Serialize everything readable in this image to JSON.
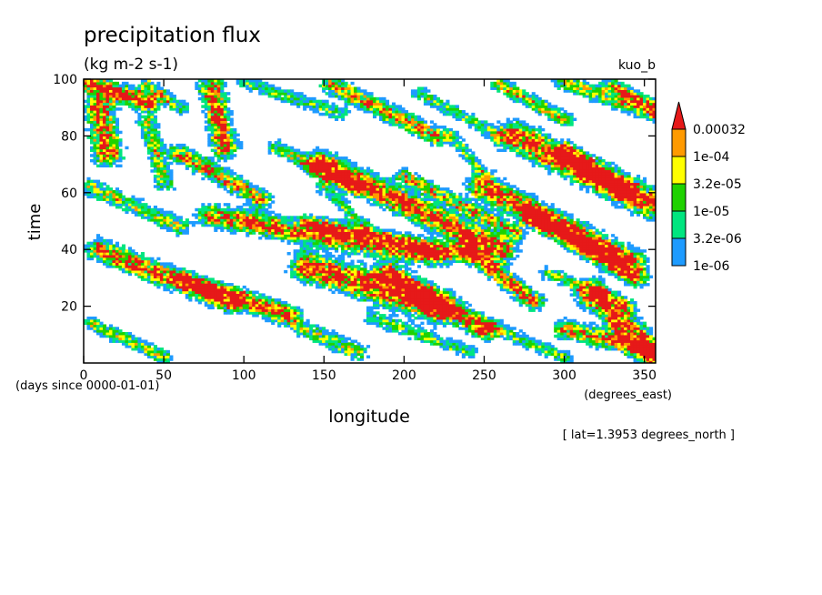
{
  "chart_data": {
    "type": "heatmap",
    "title": "precipitation flux",
    "units": "(kg m-2 s-1)",
    "run_label": "kuo_b",
    "xlabel": "longitude",
    "x_units": "(degrees_east)",
    "ylabel": "time",
    "y_units": "(days since 0000-01-01)",
    "footnote": "[ lat=1.3953 degrees_north ]",
    "xlim": [
      0,
      357
    ],
    "ylim": [
      0,
      100
    ],
    "x_ticks": [
      0,
      50,
      100,
      150,
      200,
      250,
      300,
      350
    ],
    "y_ticks": [
      20,
      40,
      60,
      80,
      100
    ],
    "grid": false,
    "legend_position": "right",
    "colorbar": {
      "levels": [
        "1e-06",
        "3.2e-06",
        "1e-05",
        "3.2e-05",
        "1e-04",
        "0.00032"
      ],
      "colors": [
        "#1e9bff",
        "#00e57f",
        "#1fd200",
        "#ffff00",
        "#ff9a00",
        "#e61919"
      ],
      "extend": "max"
    },
    "features": [
      {
        "x0": 2,
        "y0": 99,
        "x1": 40,
        "y1": 92,
        "w": 5,
        "i": 1.0
      },
      {
        "x0": 10,
        "y0": 90,
        "x1": 15,
        "y1": 74,
        "w": 7,
        "i": 0.9
      },
      {
        "x0": 40,
        "y0": 98,
        "x1": 60,
        "y1": 90,
        "w": 4,
        "i": 0.6
      },
      {
        "x0": 40,
        "y0": 85,
        "x1": 50,
        "y1": 64,
        "w": 5,
        "i": 0.6
      },
      {
        "x0": 80,
        "y0": 97,
        "x1": 88,
        "y1": 76,
        "w": 6,
        "i": 0.9
      },
      {
        "x0": 100,
        "y0": 99,
        "x1": 160,
        "y1": 88,
        "w": 4,
        "i": 0.5
      },
      {
        "x0": 155,
        "y0": 98,
        "x1": 220,
        "y1": 80,
        "w": 5,
        "i": 0.8
      },
      {
        "x0": 210,
        "y0": 95,
        "x1": 260,
        "y1": 80,
        "w": 4,
        "i": 0.5
      },
      {
        "x0": 260,
        "y0": 98,
        "x1": 300,
        "y1": 86,
        "w": 4,
        "i": 0.7
      },
      {
        "x0": 300,
        "y0": 99,
        "x1": 355,
        "y1": 88,
        "w": 5,
        "i": 0.6
      },
      {
        "x0": 270,
        "y0": 80,
        "x1": 355,
        "y1": 56,
        "w": 8,
        "i": 1.0
      },
      {
        "x0": 300,
        "y0": 74,
        "x1": 340,
        "y1": 60,
        "w": 5,
        "i": 0.9
      },
      {
        "x0": 60,
        "y0": 74,
        "x1": 110,
        "y1": 58,
        "w": 5,
        "i": 0.8
      },
      {
        "x0": 120,
        "y0": 76,
        "x1": 170,
        "y1": 62,
        "w": 4,
        "i": 0.6
      },
      {
        "x0": 150,
        "y0": 70,
        "x1": 260,
        "y1": 40,
        "w": 7,
        "i": 1.0
      },
      {
        "x0": 200,
        "y0": 66,
        "x1": 270,
        "y1": 46,
        "w": 4,
        "i": 0.7
      },
      {
        "x0": 250,
        "y0": 62,
        "x1": 340,
        "y1": 36,
        "w": 7,
        "i": 1.0
      },
      {
        "x0": 280,
        "y0": 52,
        "x1": 345,
        "y1": 30,
        "w": 5,
        "i": 0.8
      },
      {
        "x0": 5,
        "y0": 62,
        "x1": 60,
        "y1": 48,
        "w": 5,
        "i": 0.6
      },
      {
        "x0": 80,
        "y0": 52,
        "x1": 220,
        "y1": 38,
        "w": 6,
        "i": 0.9
      },
      {
        "x0": 140,
        "y0": 50,
        "x1": 240,
        "y1": 38,
        "w": 4,
        "i": 0.6
      },
      {
        "x0": 10,
        "y0": 40,
        "x1": 90,
        "y1": 22,
        "w": 6,
        "i": 0.9
      },
      {
        "x0": 60,
        "y0": 30,
        "x1": 130,
        "y1": 18,
        "w": 4,
        "i": 0.6
      },
      {
        "x0": 140,
        "y0": 34,
        "x1": 220,
        "y1": 20,
        "w": 8,
        "i": 1.0
      },
      {
        "x0": 190,
        "y0": 32,
        "x1": 250,
        "y1": 12,
        "w": 6,
        "i": 0.9
      },
      {
        "x0": 240,
        "y0": 40,
        "x1": 280,
        "y1": 22,
        "w": 5,
        "i": 0.9
      },
      {
        "x0": 290,
        "y0": 32,
        "x1": 340,
        "y1": 20,
        "w": 4,
        "i": 0.5
      },
      {
        "x0": 320,
        "y0": 24,
        "x1": 357,
        "y1": 2,
        "w": 8,
        "i": 1.0
      },
      {
        "x0": 300,
        "y0": 12,
        "x1": 357,
        "y1": 4,
        "w": 5,
        "i": 0.8
      },
      {
        "x0": 100,
        "y0": 22,
        "x1": 170,
        "y1": 4,
        "w": 5,
        "i": 0.6
      },
      {
        "x0": 5,
        "y0": 14,
        "x1": 50,
        "y1": 2,
        "w": 4,
        "i": 0.6
      },
      {
        "x0": 180,
        "y0": 16,
        "x1": 240,
        "y1": 4,
        "w": 4,
        "i": 0.5
      },
      {
        "x0": 250,
        "y0": 14,
        "x1": 300,
        "y1": 2,
        "w": 4,
        "i": 0.5
      },
      {
        "x0": 150,
        "y0": 62,
        "x1": 175,
        "y1": 48,
        "w": 4,
        "i": 0.5
      },
      {
        "x0": 230,
        "y0": 80,
        "x1": 250,
        "y1": 66,
        "w": 4,
        "i": 0.5
      },
      {
        "x0": 330,
        "y0": 98,
        "x1": 357,
        "y1": 90,
        "w": 4,
        "i": 0.7
      }
    ]
  }
}
